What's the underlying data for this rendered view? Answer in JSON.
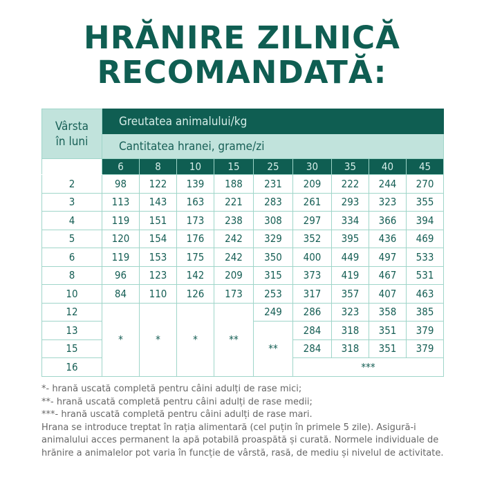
{
  "title": {
    "line1": "HRĂNIRE ZILNICĂ",
    "line2": "RECOMANDATĂ:"
  },
  "table": {
    "age_header_line1": "Vârsta",
    "age_header_line2": "în luni",
    "weight_header": "Greutatea animalului/kg",
    "amount_header": "Cantitatea hranei, grame/zi",
    "weights": [
      "6",
      "8",
      "10",
      "15",
      "25",
      "30",
      "35",
      "40",
      "45"
    ],
    "rows": [
      {
        "age": "2",
        "values": [
          "98",
          "122",
          "139",
          "188",
          "231",
          "209",
          "222",
          "244",
          "270"
        ]
      },
      {
        "age": "3",
        "values": [
          "113",
          "143",
          "163",
          "221",
          "283",
          "261",
          "293",
          "323",
          "355"
        ]
      },
      {
        "age": "4",
        "values": [
          "119",
          "151",
          "173",
          "238",
          "308",
          "297",
          "334",
          "366",
          "394"
        ]
      },
      {
        "age": "5",
        "values": [
          "120",
          "154",
          "176",
          "242",
          "329",
          "352",
          "395",
          "436",
          "469"
        ]
      },
      {
        "age": "6",
        "values": [
          "119",
          "153",
          "175",
          "242",
          "350",
          "400",
          "449",
          "497",
          "533"
        ]
      },
      {
        "age": "8",
        "values": [
          "96",
          "123",
          "142",
          "209",
          "315",
          "373",
          "419",
          "467",
          "531"
        ]
      },
      {
        "age": "10",
        "values": [
          "84",
          "110",
          "126",
          "173",
          "253",
          "317",
          "357",
          "407",
          "463"
        ]
      },
      {
        "age": "12",
        "values": [
          "249",
          "286",
          "323",
          "358",
          "385"
        ]
      },
      {
        "age": "13",
        "values": [
          "284",
          "318",
          "351",
          "379"
        ]
      },
      {
        "age": "15",
        "values": [
          "284",
          "318",
          "351",
          "379"
        ]
      },
      {
        "age": "16"
      }
    ],
    "merged": {
      "c6": "*",
      "c8": "*",
      "c10": "*",
      "c15": "**",
      "c25": "**",
      "c30_45": "***"
    }
  },
  "notes": [
    "*- hrană uscată completă pentru câini adulți de rase mici;",
    "**- hrană uscată completă pentru câini adulți de rase medii;",
    "***- hrană uscată completă pentru câini adulți de rase mari.",
    "Hrana se introduce treptat în rația alimentară (cel puțin în primele 5 zile). Asigură-i",
    "animalului acces permanent la apă potabilă proaspătă și curată. Normele individuale de",
    "hrănire a animalelor pot varia în funcție de vârstă, rasă, de mediu și nivelul de activitate."
  ],
  "colors": {
    "dark_green": "#0f5e52",
    "light_green": "#c1e3dc",
    "border": "#9fd5c9"
  }
}
